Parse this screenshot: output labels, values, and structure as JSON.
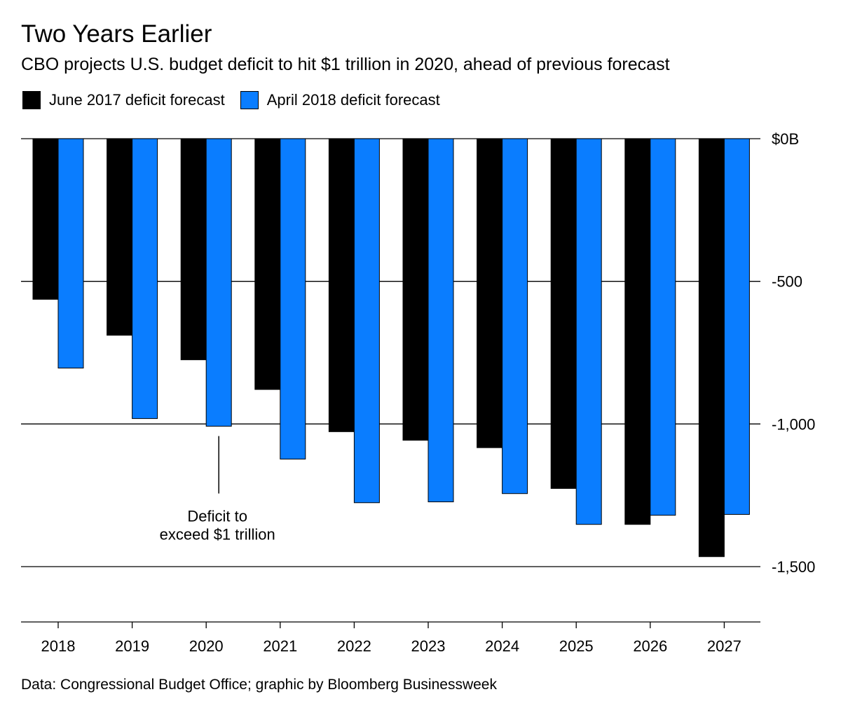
{
  "header": {
    "title": "Two Years Earlier",
    "subtitle": "CBO projects U.S. budget deficit to hit $1 trillion in 2020, ahead of previous forecast"
  },
  "legend": {
    "items": [
      {
        "label": "June 2017 deficit forecast",
        "color": "#000000"
      },
      {
        "label": "April 2018 deficit forecast",
        "color": "#0A7DFF"
      }
    ]
  },
  "chart_data": {
    "type": "bar",
    "title": "Two Years Earlier",
    "subtitle": "CBO projects U.S. budget deficit to hit $1 trillion in 2020, ahead of previous forecast",
    "xlabel": "",
    "ylabel": "",
    "categories": [
      "2018",
      "2019",
      "2020",
      "2021",
      "2022",
      "2023",
      "2024",
      "2025",
      "2026",
      "2027"
    ],
    "series": [
      {
        "name": "June 2017 deficit forecast",
        "color": "#000000",
        "values": [
          -563,
          -689,
          -775,
          -879,
          -1027,
          -1057,
          -1083,
          -1226,
          -1352,
          -1465
        ]
      },
      {
        "name": "April 2018 deficit forecast",
        "color": "#0A7DFF",
        "values": [
          -804,
          -981,
          -1008,
          -1123,
          -1276,
          -1273,
          -1244,
          -1352,
          -1320,
          -1317
        ]
      }
    ],
    "yticks": [
      0,
      -500,
      -1000,
      -1500
    ],
    "ytick_labels": [
      "$0B",
      "-500",
      "-1,000",
      "-1,500"
    ],
    "ylim": [
      -1700,
      0
    ],
    "y_axis_side": "right",
    "grid": true,
    "legend_position": "top-left",
    "annotations": [
      {
        "category": "2020",
        "series": 1,
        "lines": [
          "Deficit to",
          "exceed $1 trillion"
        ]
      }
    ]
  },
  "footer": {
    "source": "Data: Congressional Budget Office; graphic by Bloomberg Businessweek"
  }
}
